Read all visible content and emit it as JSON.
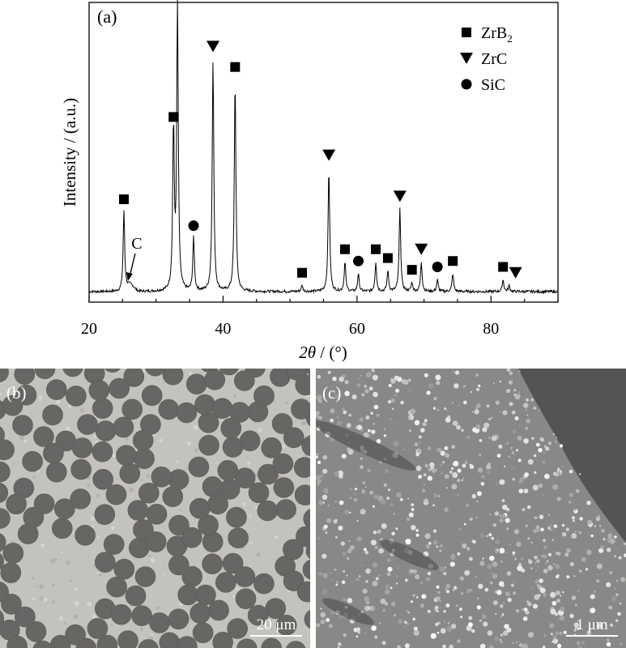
{
  "chart_data": {
    "type": "line",
    "panel_label": "(a)",
    "xlabel_italic": "2θ",
    "xlabel_suffix": " / (°)",
    "ylabel": "Intensity / (a.u.)",
    "xlim": [
      20,
      90
    ],
    "xticks": [
      20,
      40,
      60,
      80
    ],
    "yticks_shown": false,
    "grid": false,
    "legend_position": "top-right",
    "legend": [
      {
        "marker": "square",
        "label": "ZrB",
        "subscript": "2"
      },
      {
        "marker": "triangle-down",
        "label": "ZrC",
        "subscript": ""
      },
      {
        "marker": "circle",
        "label": "SiC",
        "subscript": ""
      }
    ],
    "baseline": 3,
    "peaks": [
      {
        "x": 25.2,
        "y": 30,
        "phase": "ZrB2"
      },
      {
        "x": 32.6,
        "y": 58,
        "phase": "ZrB2"
      },
      {
        "x": 33.2,
        "y": 100,
        "phase": "ZrC"
      },
      {
        "x": 35.6,
        "y": 21,
        "phase": "SiC"
      },
      {
        "x": 38.5,
        "y": 82,
        "phase": "ZrC"
      },
      {
        "x": 41.8,
        "y": 75,
        "phase": "ZrB2"
      },
      {
        "x": 51.8,
        "y": 5,
        "phase": "ZrB2"
      },
      {
        "x": 55.8,
        "y": 45,
        "phase": "ZrC"
      },
      {
        "x": 58.2,
        "y": 13,
        "phase": "ZrB2"
      },
      {
        "x": 60.2,
        "y": 9,
        "phase": "SiC"
      },
      {
        "x": 62.8,
        "y": 13,
        "phase": "ZrB2"
      },
      {
        "x": 64.6,
        "y": 10,
        "phase": "ZrB2"
      },
      {
        "x": 66.4,
        "y": 31,
        "phase": "ZrC"
      },
      {
        "x": 68.2,
        "y": 6,
        "phase": "ZrB2"
      },
      {
        "x": 69.6,
        "y": 13,
        "phase": "ZrC"
      },
      {
        "x": 72.0,
        "y": 7,
        "phase": "SiC"
      },
      {
        "x": 74.3,
        "y": 9,
        "phase": "ZrB2"
      },
      {
        "x": 81.8,
        "y": 7,
        "phase": "ZrB2"
      },
      {
        "x": 82.7,
        "y": 5,
        "phase": "ZrC"
      }
    ],
    "annotation": {
      "text": "C",
      "x": 26.4
    }
  },
  "micrographs": {
    "b": {
      "label": "(b)",
      "scale_text": "20 μm"
    },
    "c": {
      "label": "(c)",
      "scale_text": "1 μm"
    }
  }
}
